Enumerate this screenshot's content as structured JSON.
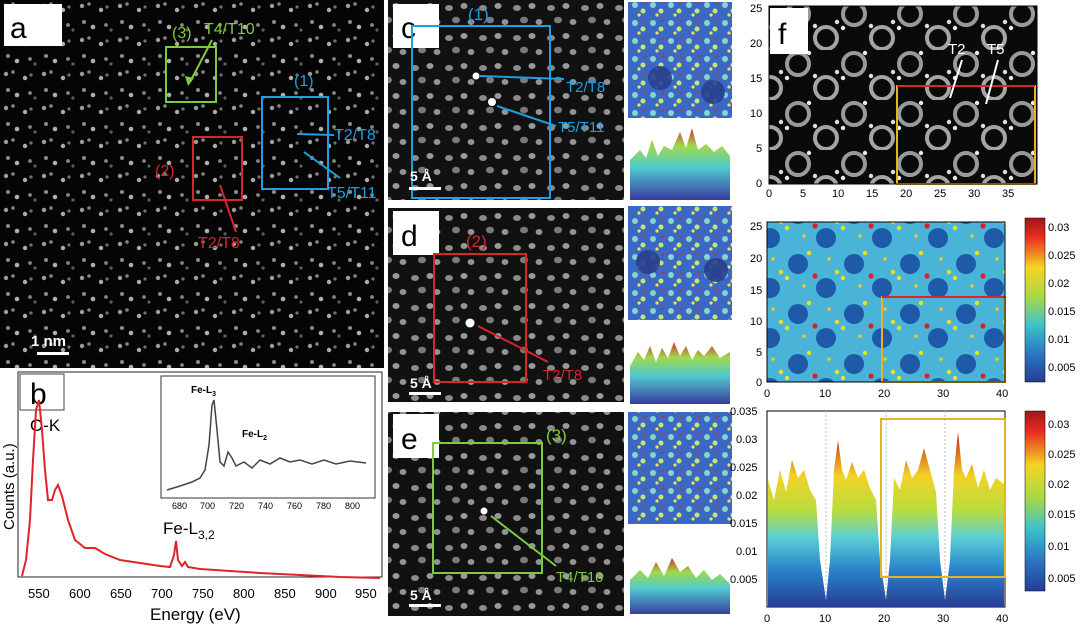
{
  "panels": {
    "a": {
      "letter": "a",
      "scale": "1 nm",
      "box1": {
        "id": "(1)",
        "l1": "T2/T8",
        "l2": "T5/T11"
      },
      "box2": {
        "id": "(2)",
        "l1": "T2/T8"
      },
      "box3": {
        "id": "(3)",
        "l1": "T4/T10"
      }
    },
    "b": {
      "letter": "b",
      "peak_main": "O-K",
      "peak_fe": "Fe-L",
      "peak_fe_sub": "3,2",
      "xlabel": "Energy (eV)",
      "ylabel": "Counts (a.u.)",
      "xticks": [
        "550",
        "600",
        "650",
        "700",
        "750",
        "800",
        "850",
        "900",
        "950"
      ],
      "inset": {
        "l3": "Fe-L",
        "l3sub": "3",
        "l2": "Fe-L",
        "l2sub": "2",
        "xticks": [
          "680",
          "700",
          "720",
          "740",
          "760",
          "780",
          "800"
        ]
      }
    },
    "c": {
      "letter": "c",
      "id": "(1)",
      "l1": "T2/T8",
      "l2": "T5/T11",
      "scale": "5 Å"
    },
    "d": {
      "letter": "d",
      "id": "(2)",
      "l1": "T2/T8",
      "scale": "5 Å"
    },
    "e": {
      "letter": "e",
      "id": "(3)",
      "l1": "T4/T10",
      "scale": "5 Å"
    },
    "f": {
      "letter": "f",
      "t2": "T2",
      "t5": "T5",
      "yticks": [
        "0",
        "5",
        "10",
        "15",
        "20",
        "25"
      ],
      "xticks": [
        "0",
        "5",
        "10",
        "15",
        "20",
        "25",
        "30",
        "35"
      ]
    },
    "map": {
      "yticks": [
        "0",
        "5",
        "10",
        "15",
        "20",
        "25"
      ],
      "xticks": [
        "0",
        "10",
        "20",
        "30",
        "40"
      ],
      "cbar": [
        "0.03",
        "0.025",
        "0.02",
        "0.015",
        "0.01",
        "0.005"
      ]
    },
    "profile": {
      "yticks": [
        "0.035",
        "0.03",
        "0.025",
        "0.02",
        "0.015",
        "0.01",
        "0.005"
      ],
      "xticks": [
        "0",
        "10",
        "20",
        "30",
        "40"
      ],
      "cbar": [
        "0.03",
        "0.025",
        "0.02",
        "0.015",
        "0.01",
        "0.005"
      ]
    }
  },
  "colors": {
    "blue": "#1e9fe0",
    "red": "#d4262b",
    "green": "#7fc93e",
    "spectrum": "#e0232b",
    "gold": "#e6b422"
  }
}
